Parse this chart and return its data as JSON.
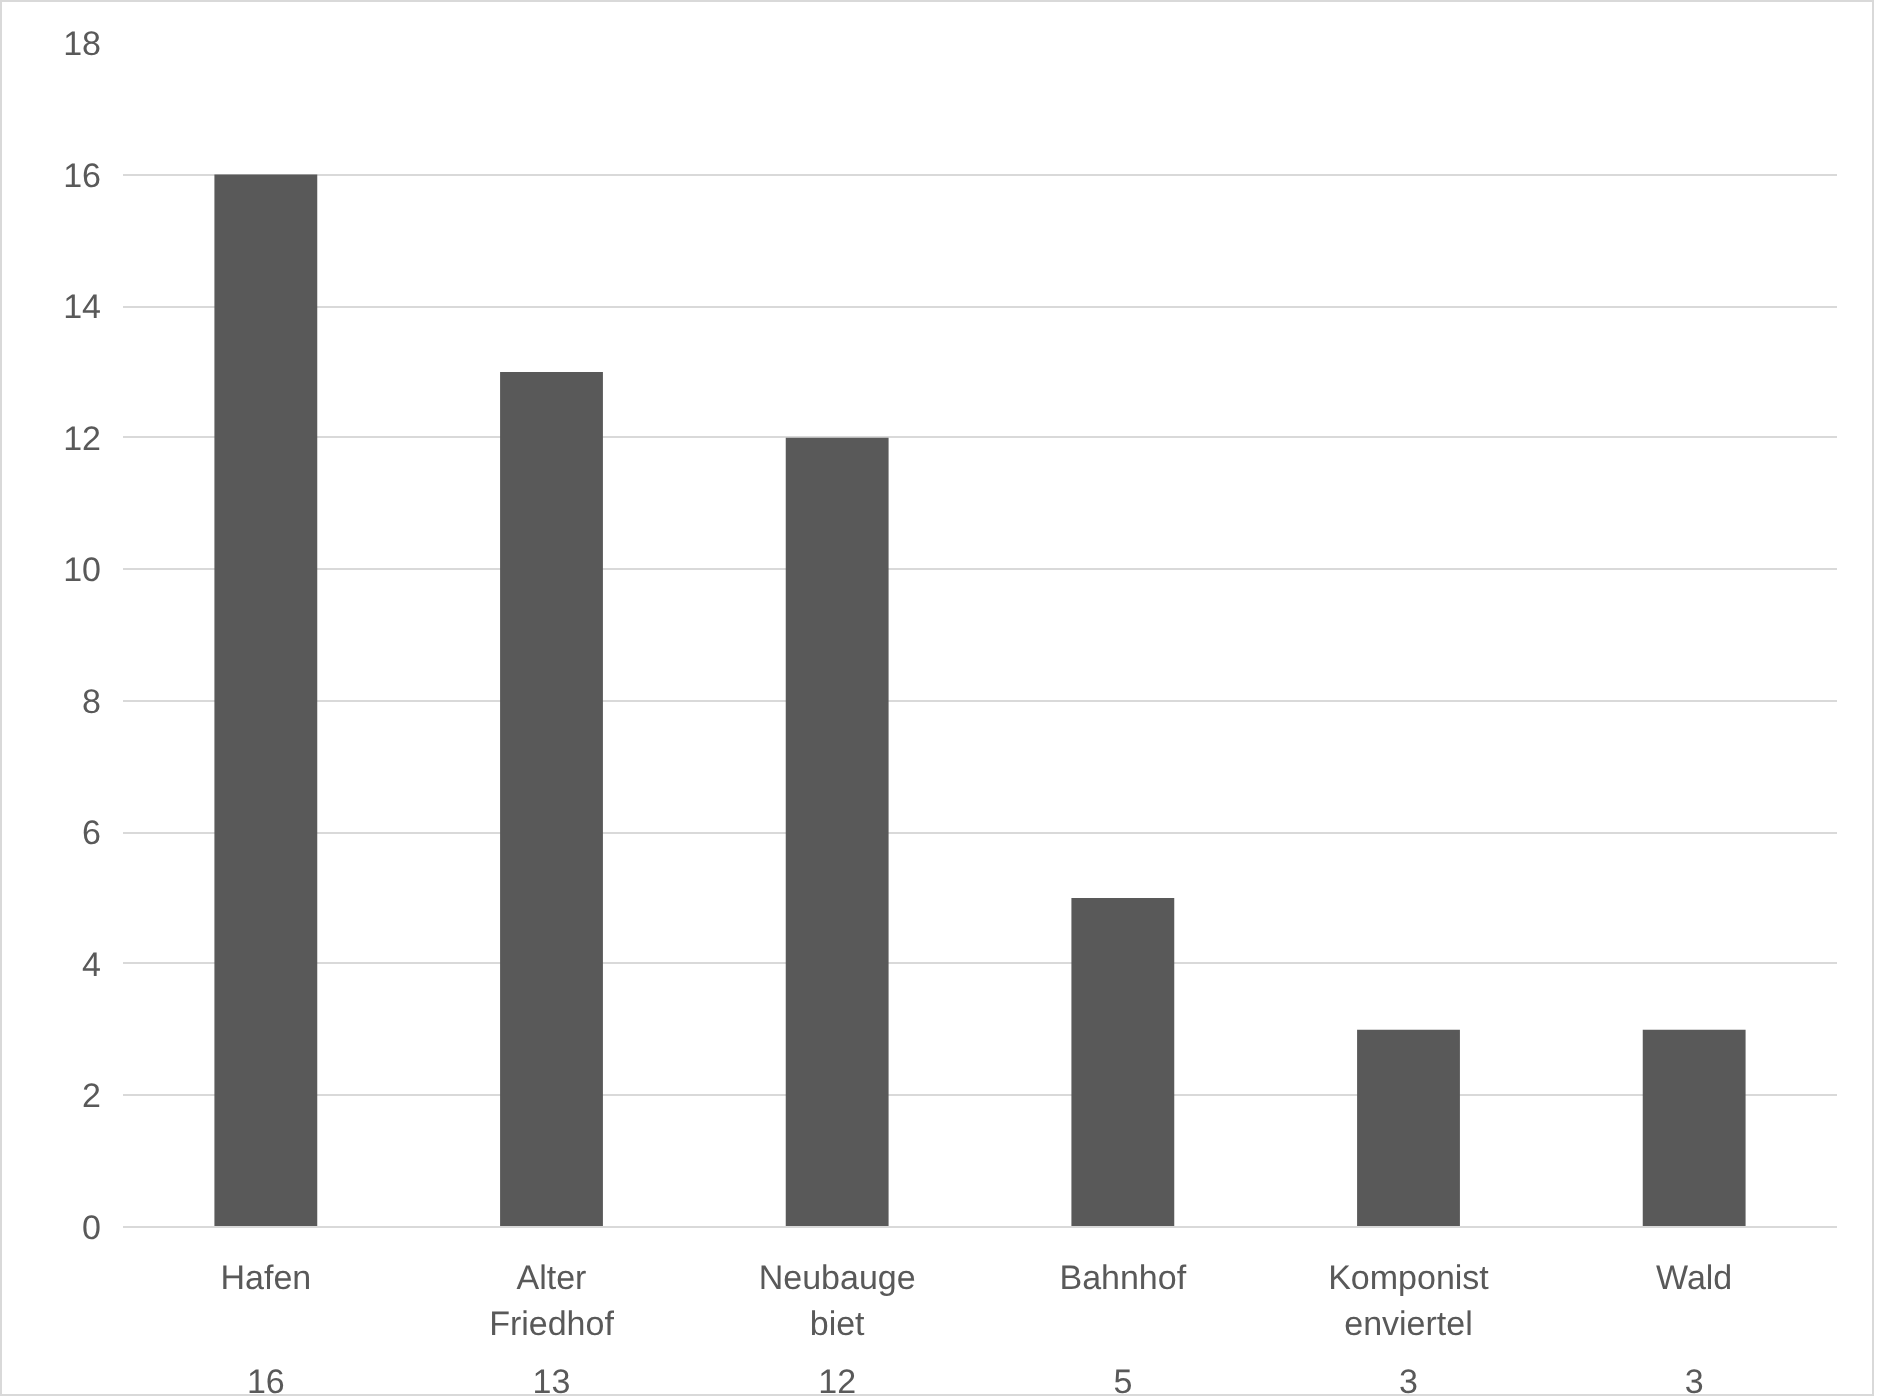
{
  "chart_data": {
    "type": "bar",
    "categories": [
      "Hafen",
      "Alter\nFriedhof",
      "Neubauge\nbiet",
      "Bahnhof",
      "Komponist\nenviertel",
      "Wald"
    ],
    "values": [
      16,
      13,
      12,
      5,
      3,
      3
    ],
    "color": "#595959",
    "ylim": [
      0,
      18
    ],
    "yticks": [
      0,
      2,
      4,
      6,
      8,
      10,
      12,
      14,
      16,
      18
    ],
    "grid": "y",
    "data_labels": true
  }
}
